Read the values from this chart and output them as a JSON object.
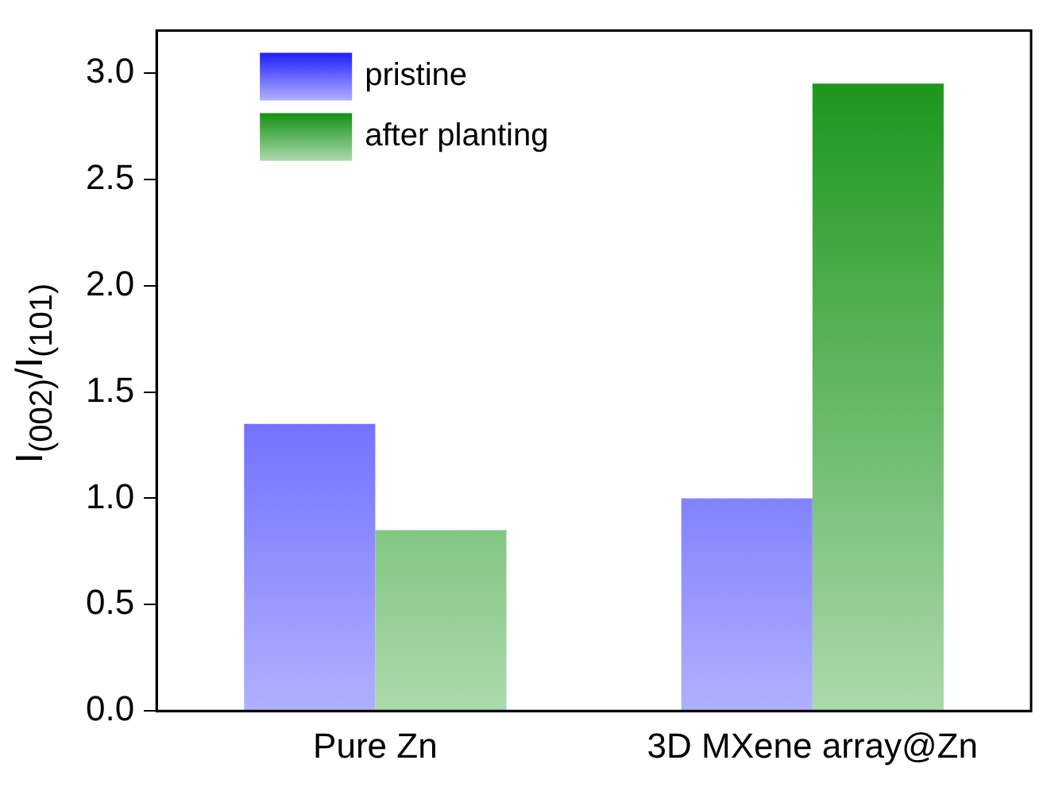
{
  "chart_data": {
    "type": "bar",
    "ylabel": "I$_{(002)}$/I$_{(101)}$",
    "categories": [
      "Pure Zn",
      "3D MXene array@Zn"
    ],
    "series": [
      {
        "name": "pristine",
        "color": "#1e1eff",
        "values": [
          1.35,
          1.0
        ]
      },
      {
        "name": "after planting",
        "color": "#119111",
        "values": [
          0.85,
          2.95
        ]
      }
    ],
    "ylim": [
      0,
      3.2
    ],
    "yticks": [
      {
        "value": 0,
        "label": "0.0"
      },
      {
        "value": 0.5,
        "label": "0.5"
      },
      {
        "value": 1,
        "label": "1.0"
      },
      {
        "value": 1.5,
        "label": "1.5"
      },
      {
        "value": 2,
        "label": "2.0"
      },
      {
        "value": 2.5,
        "label": "2.5"
      },
      {
        "value": 3,
        "label": "3.0"
      }
    ],
    "grid": false,
    "legend": "top left"
  }
}
